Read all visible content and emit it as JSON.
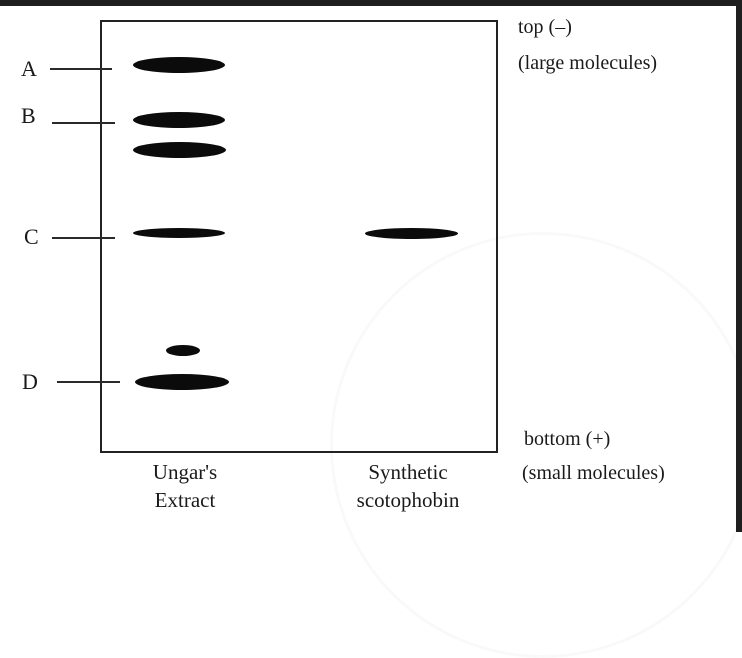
{
  "markers": [
    {
      "id": "A",
      "label": "A"
    },
    {
      "id": "B",
      "label": "B"
    },
    {
      "id": "C",
      "label": "C"
    },
    {
      "id": "D",
      "label": "D"
    }
  ],
  "top_note": {
    "line1": "top (–)",
    "line2": "(large molecules)"
  },
  "bottom_note": {
    "line1": "bottom (+)",
    "line2": "(small molecules)"
  },
  "lanes": [
    {
      "id": "ungars-extract",
      "line1": "Ungar's",
      "line2": "Extract"
    },
    {
      "id": "synthetic-scotophobin",
      "line1": "Synthetic",
      "line2": "scotophobin"
    }
  ]
}
